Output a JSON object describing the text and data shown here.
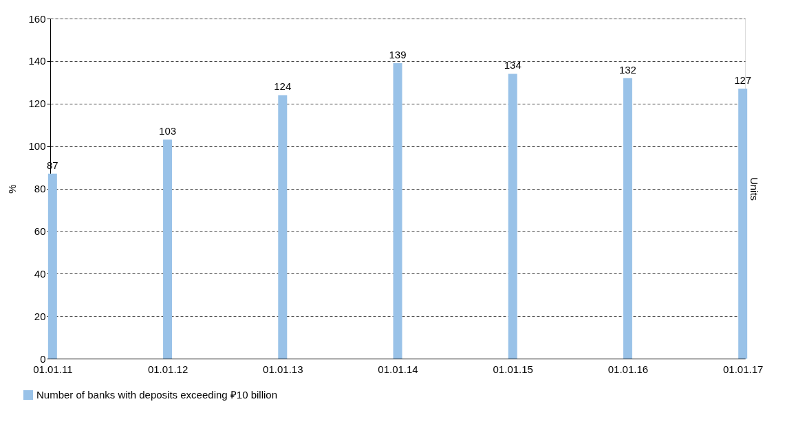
{
  "chart_data": {
    "type": "bar",
    "ylabel": "%",
    "y2label": "Units",
    "categories": [
      "01.01.11",
      "01.01.12",
      "01.01.13",
      "01.01.14",
      "01.01.15",
      "01.01.16",
      "01.01.17"
    ],
    "series": [
      {
        "name": "Number of banks with deposits exceeding ₽10 billion",
        "color": "#99c2e8",
        "values": [
          87,
          103,
          124,
          139,
          134,
          132,
          127
        ]
      }
    ],
    "ylim": [
      0,
      160
    ],
    "yticks": [
      0,
      20,
      40,
      60,
      80,
      100,
      120,
      140,
      160
    ],
    "grid": "y",
    "legend": "bottom",
    "data_labels": true
  }
}
